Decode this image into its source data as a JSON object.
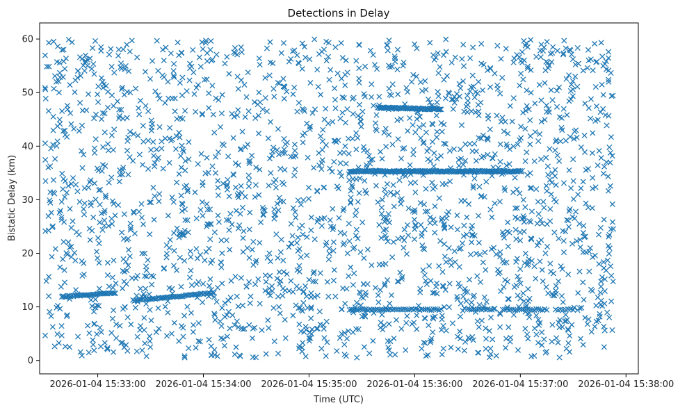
{
  "chart_data": {
    "type": "scatter",
    "title": "Detections in Delay",
    "xlabel": "Time (UTC)",
    "ylabel": "Bistatic Delay (km)",
    "marker": "x",
    "color": "#1f77b4",
    "grid": false,
    "xlim": [
      "2026-01-04 15:32:27",
      "2026-01-04 15:38:07"
    ],
    "ylim": [
      -2.5,
      63
    ],
    "xticks": [
      "2026-01-04 15:33:00",
      "2026-01-04 15:34:00",
      "2026-01-04 15:35:00",
      "2026-01-04 15:36:00",
      "2026-01-04 15:37:00",
      "2026-01-04 15:38:00"
    ],
    "yticks": [
      0,
      10,
      20,
      30,
      40,
      50,
      60
    ],
    "data_start": "2026-01-04 15:32:30",
    "data_end": "2026-01-04 15:37:53",
    "noise": {
      "description": "uniformly scattered false detections",
      "count_estimate": 2200,
      "delay_range_km": [
        0.5,
        60
      ]
    },
    "tracks": [
      {
        "start": "2026-01-04 15:32:40",
        "end": "2026-01-04 15:33:10",
        "delay_start_km": 11.9,
        "delay_end_km": 12.6,
        "density": 40
      },
      {
        "start": "2026-01-04 15:33:20",
        "end": "2026-01-04 15:34:06",
        "delay_start_km": 11.2,
        "delay_end_km": 12.6,
        "density": 55
      },
      {
        "start": "2026-01-04 15:35:23",
        "end": "2026-01-04 15:37:01",
        "delay_start_km": 35.3,
        "delay_end_km": 35.3,
        "density": 180
      },
      {
        "start": "2026-01-04 15:35:39",
        "end": "2026-01-04 15:36:15",
        "delay_start_km": 47.2,
        "delay_end_km": 46.9,
        "density": 70
      },
      {
        "start": "2026-01-04 15:35:23",
        "end": "2026-01-04 15:35:45",
        "delay_start_km": 9.5,
        "delay_end_km": 9.5,
        "density": 22
      },
      {
        "start": "2026-01-04 15:35:45",
        "end": "2026-01-04 15:36:15",
        "delay_start_km": 9.5,
        "delay_end_km": 9.5,
        "density": 28
      },
      {
        "start": "2026-01-04 15:36:30",
        "end": "2026-01-04 15:36:45",
        "delay_start_km": 9.5,
        "delay_end_km": 9.5,
        "density": 14
      },
      {
        "start": "2026-01-04 15:36:50",
        "end": "2026-01-04 15:37:15",
        "delay_start_km": 9.5,
        "delay_end_km": 9.5,
        "density": 22
      },
      {
        "start": "2026-01-04 15:37:20",
        "end": "2026-01-04 15:37:30",
        "delay_start_km": 9.5,
        "delay_end_km": 9.5,
        "density": 8
      }
    ]
  }
}
